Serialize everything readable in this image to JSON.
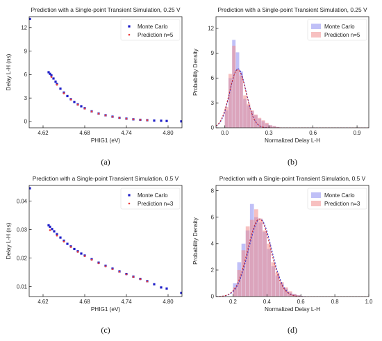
{
  "chart_data": [
    {
      "id": "a",
      "type": "scatter",
      "title": "Prediction with a Single-point Transient Simulation, 0.25 V",
      "xlabel": "PHIG1 (eV)",
      "ylabel": "Delay L-H (ns)",
      "caption": "(a)",
      "xlim": [
        4.6,
        4.82
      ],
      "ylim": [
        -0.8,
        13.4
      ],
      "xticks": [
        "4.62",
        "4.68",
        "4.74",
        "4.80"
      ],
      "xtick_values": [
        4.62,
        4.68,
        4.74,
        4.8
      ],
      "yticks": [
        "0",
        "3",
        "6",
        "9",
        "12"
      ],
      "ytick_values": [
        0,
        3,
        6,
        9,
        12
      ],
      "grid": false,
      "legend_position": "top-right",
      "series": [
        {
          "name": "Monte Carlo",
          "color": "#1f1fc8",
          "marker": "square",
          "x": [
            4.601,
            4.628,
            4.63,
            4.632,
            4.635,
            4.638,
            4.64,
            4.645,
            4.65,
            4.655,
            4.66,
            4.665,
            4.67,
            4.675,
            4.68,
            4.69,
            4.7,
            4.71,
            4.72,
            4.73,
            4.74,
            4.75,
            4.76,
            4.77,
            4.78,
            4.79,
            4.798,
            4.819
          ],
          "y": [
            13.1,
            6.3,
            6.1,
            5.9,
            5.5,
            5.1,
            4.8,
            4.2,
            3.7,
            3.25,
            2.85,
            2.5,
            2.2,
            1.95,
            1.7,
            1.3,
            1.02,
            0.8,
            0.62,
            0.48,
            0.37,
            0.28,
            0.22,
            0.17,
            0.12,
            0.1,
            0.07,
            0.02
          ]
        },
        {
          "name": "Prediction n=5",
          "color": "#e83a3a",
          "marker": "dot",
          "x": [
            4.632,
            4.64,
            4.65,
            4.66,
            4.67,
            4.68,
            4.69,
            4.7,
            4.71,
            4.72,
            4.73,
            4.74,
            4.75,
            4.76,
            4.77
          ],
          "y": [
            5.7,
            4.7,
            3.6,
            2.8,
            2.15,
            1.65,
            1.28,
            1.0,
            0.78,
            0.61,
            0.47,
            0.36,
            0.28,
            0.22,
            0.17
          ]
        }
      ]
    },
    {
      "id": "b",
      "type": "bar",
      "title": "Prediction with a Single-point Transient Simulation, 0.25 V",
      "xlabel": "Normalized Delay L-H",
      "ylabel": "Probability Density",
      "caption": "(b)",
      "xlim": [
        -0.06,
        0.98
      ],
      "ylim": [
        0,
        13.4
      ],
      "xticks": [
        "0.0",
        "0.3",
        "0.6",
        "0.9"
      ],
      "xtick_values": [
        0.0,
        0.3,
        0.6,
        0.9
      ],
      "yticks": [
        "0",
        "3",
        "6",
        "9",
        "12"
      ],
      "ytick_values": [
        0,
        3,
        6,
        9,
        12
      ],
      "bin_width": 0.025,
      "grid": false,
      "legend_position": "top-right",
      "series": [
        {
          "name": "Monte Carlo",
          "color": "#8c8cf0",
          "bin_starts": [
            0.0,
            0.025,
            0.05,
            0.075,
            0.1,
            0.125,
            0.15,
            0.175,
            0.2,
            0.225,
            0.25,
            0.275,
            0.3,
            0.325,
            0.35
          ],
          "values": [
            2.1,
            6.0,
            10.6,
            9.1,
            6.8,
            3.5,
            2.7,
            2.0,
            1.5,
            1.1,
            0.8,
            0.5,
            0.3,
            0.2,
            0.1
          ],
          "fit_mean": 0.09,
          "fit_sigma": 0.056,
          "fit_color": "#3a3ad0"
        },
        {
          "name": "Prediction n=5",
          "color": "#f08c8c",
          "bin_starts": [
            0.0,
            0.025,
            0.05,
            0.075,
            0.1,
            0.125,
            0.15,
            0.175,
            0.2,
            0.225,
            0.25,
            0.275,
            0.3,
            0.325,
            0.35
          ],
          "values": [
            2.5,
            6.5,
            9.9,
            7.0,
            6.3,
            3.9,
            2.9,
            2.1,
            1.6,
            1.2,
            0.9,
            0.6,
            0.3,
            0.2,
            0.1
          ],
          "fit_mean": 0.088,
          "fit_sigma": 0.057,
          "fit_color": "#d02a2a"
        }
      ]
    },
    {
      "id": "c",
      "type": "scatter",
      "title": "Prediction with a Single-point Transient Simulation, 0.5 V",
      "xlabel": "PHIG1 (eV)",
      "ylabel": "Delay L-H (ns)",
      "caption": "(c)",
      "xlim": [
        4.6,
        4.82
      ],
      "ylim": [
        0.0065,
        0.0455
      ],
      "xticks": [
        "4.62",
        "4.68",
        "4.74",
        "4.80"
      ],
      "xtick_values": [
        4.62,
        4.68,
        4.74,
        4.8
      ],
      "yticks": [
        "0.01",
        "0.02",
        "0.03",
        "0.04"
      ],
      "ytick_values": [
        0.01,
        0.02,
        0.03,
        0.04
      ],
      "grid": false,
      "legend_position": "top-right",
      "series": [
        {
          "name": "Monte Carlo",
          "color": "#1f1fc8",
          "marker": "square",
          "x": [
            4.601,
            4.628,
            4.63,
            4.633,
            4.636,
            4.64,
            4.645,
            4.65,
            4.655,
            4.66,
            4.665,
            4.67,
            4.675,
            4.68,
            4.69,
            4.7,
            4.71,
            4.72,
            4.73,
            4.74,
            4.75,
            4.76,
            4.77,
            4.78,
            4.79,
            4.798,
            4.819
          ],
          "y": [
            0.0445,
            0.0315,
            0.031,
            0.0302,
            0.0294,
            0.0284,
            0.0272,
            0.0261,
            0.025,
            0.0241,
            0.0232,
            0.0224,
            0.0216,
            0.0209,
            0.0196,
            0.0184,
            0.0173,
            0.0163,
            0.0153,
            0.0144,
            0.0135,
            0.0127,
            0.0119,
            0.0108,
            0.0097,
            0.0093,
            0.0078
          ]
        },
        {
          "name": "Prediction n=3",
          "color": "#e83a3a",
          "marker": "dot",
          "x": [
            4.63,
            4.64,
            4.65,
            4.66,
            4.67,
            4.68,
            4.69,
            4.7,
            4.71,
            4.72,
            4.73,
            4.74,
            4.75,
            4.76,
            4.77
          ],
          "y": [
            0.0298,
            0.0279,
            0.0258,
            0.0239,
            0.0222,
            0.0207,
            0.0194,
            0.0182,
            0.0171,
            0.0161,
            0.0152,
            0.0143,
            0.0134,
            0.0126,
            0.0118
          ]
        }
      ]
    },
    {
      "id": "d",
      "type": "bar",
      "title": "Prediction with a Single-point Transient Simulation, 0.5 V",
      "xlabel": "Normalized Delay L-H",
      "ylabel": "Probability Density",
      "caption": "(d)",
      "xlim": [
        0.1,
        1.0
      ],
      "ylim": [
        0,
        8.4
      ],
      "xticks": [
        "0.2",
        "0.4",
        "0.6",
        "0.8",
        "1.0"
      ],
      "xtick_values": [
        0.2,
        0.4,
        0.6,
        0.8,
        1.0
      ],
      "yticks": [
        "0",
        "2",
        "4",
        "6",
        "8"
      ],
      "ytick_values": [
        0,
        2,
        4,
        6,
        8
      ],
      "bin_width": 0.025,
      "grid": false,
      "legend_position": "top-right",
      "series": [
        {
          "name": "Monte Carlo",
          "color": "#8c8cf0",
          "bin_starts": [
            0.2,
            0.225,
            0.25,
            0.275,
            0.3,
            0.325,
            0.35,
            0.375,
            0.4,
            0.425,
            0.45,
            0.475,
            0.5,
            0.525,
            0.55,
            0.575
          ],
          "values": [
            1.0,
            2.6,
            4.0,
            5.0,
            7.0,
            6.0,
            5.6,
            4.9,
            3.6,
            2.3,
            1.6,
            1.0,
            0.6,
            0.3,
            0.2,
            0.1
          ],
          "fit_mean": 0.36,
          "fit_sigma": 0.068,
          "fit_color": "#3a3ad0"
        },
        {
          "name": "Prediction n=3",
          "color": "#f08c8c",
          "bin_starts": [
            0.2,
            0.225,
            0.25,
            0.275,
            0.3,
            0.325,
            0.35,
            0.375,
            0.4,
            0.425,
            0.45,
            0.475,
            0.5,
            0.525,
            0.55,
            0.575
          ],
          "values": [
            0.7,
            2.0,
            3.5,
            5.3,
            5.8,
            6.6,
            5.9,
            5.0,
            4.0,
            2.6,
            1.8,
            1.1,
            0.7,
            0.4,
            0.2,
            0.1
          ],
          "fit_mean": 0.355,
          "fit_sigma": 0.068,
          "fit_color": "#d02a2a"
        }
      ]
    }
  ]
}
